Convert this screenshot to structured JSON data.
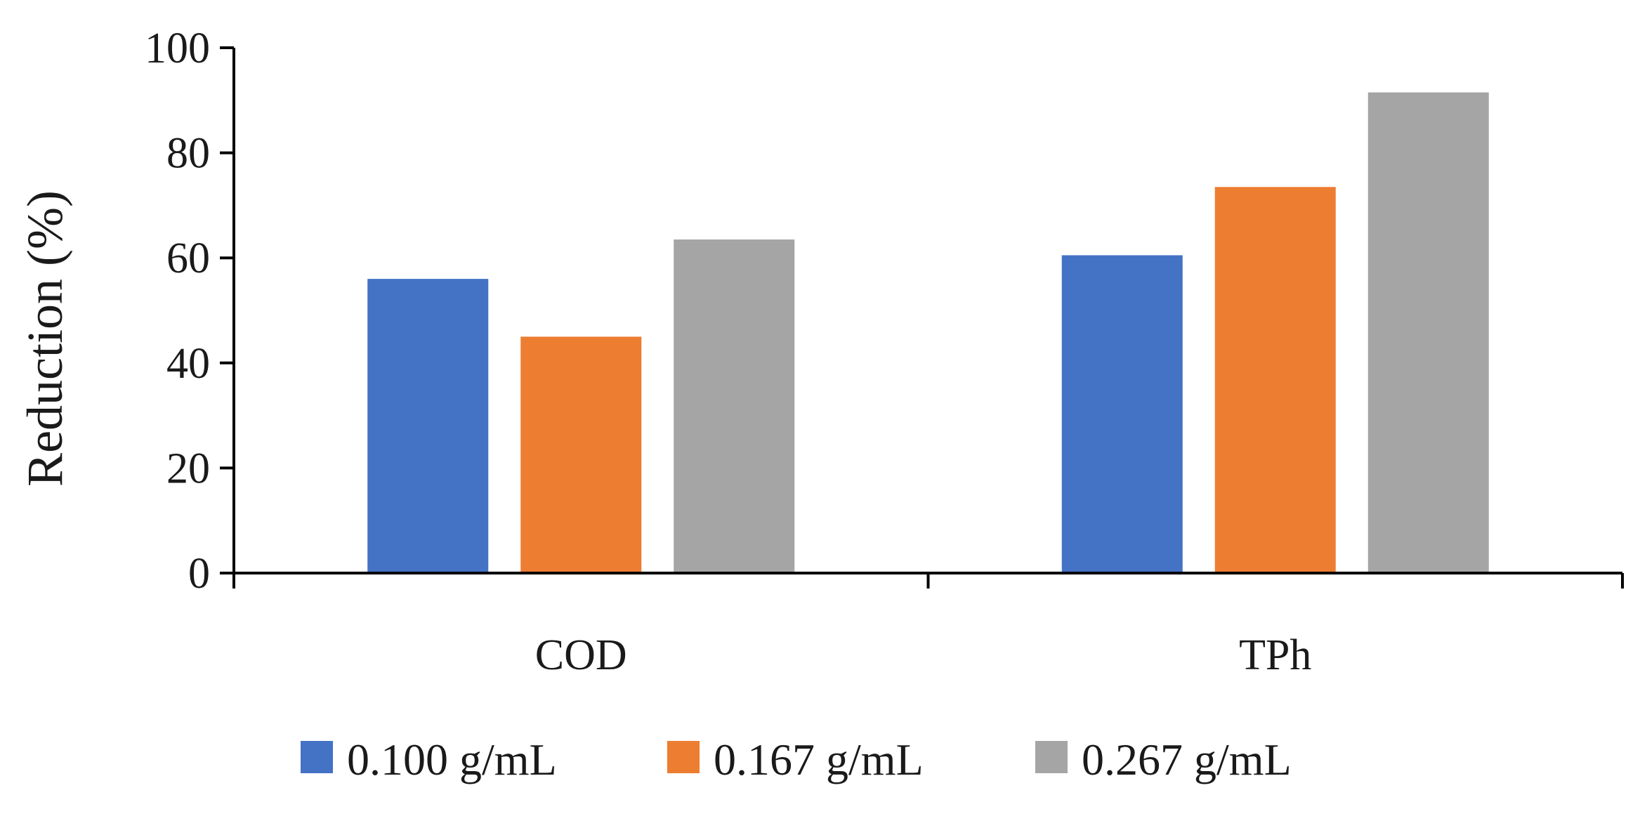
{
  "chart_data": {
    "type": "bar",
    "title": "",
    "xlabel": "",
    "ylabel": "Reduction (%)",
    "ylim": [
      0,
      100
    ],
    "yticks": [
      0,
      20,
      40,
      60,
      80,
      100
    ],
    "categories": [
      "COD",
      "TPh"
    ],
    "series": [
      {
        "name": "0.100 g/mL",
        "color": "#4472C4",
        "values": [
          56,
          60.5
        ]
      },
      {
        "name": "0.167 g/mL",
        "color": "#ED7D31",
        "values": [
          45,
          73.5
        ]
      },
      {
        "name": "0.267 g/mL",
        "color": "#A5A5A5",
        "values": [
          63.5,
          91.5
        ]
      }
    ],
    "grid": false,
    "legend": "bottom"
  }
}
